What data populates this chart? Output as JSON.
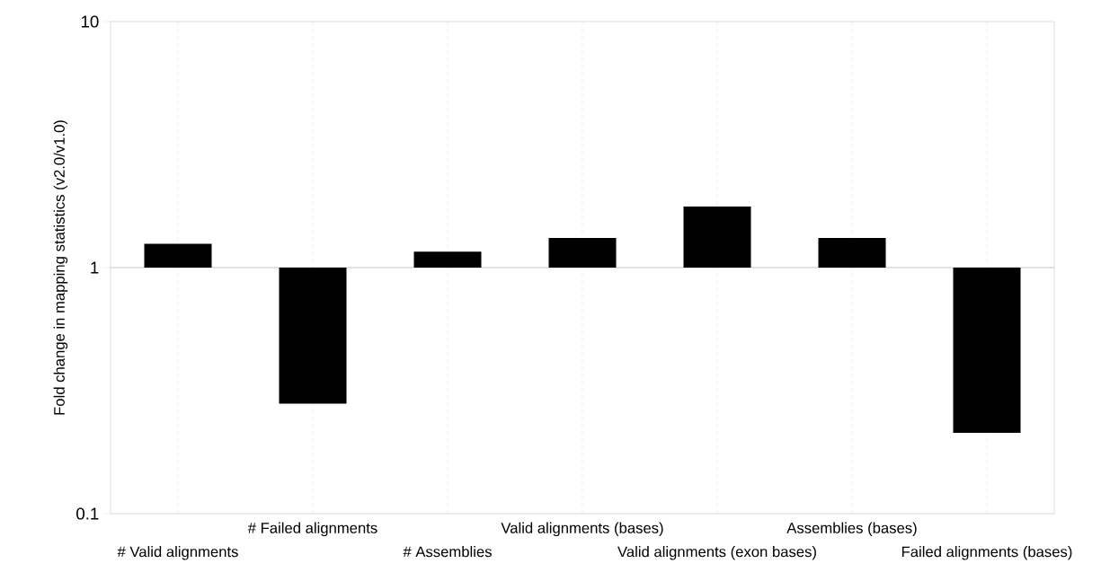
{
  "chart_data": {
    "type": "bar",
    "ylabel": "Fold change in mapping statistics (v2.0/v1.0)",
    "categories": [
      "# Valid alignments",
      "# Failed alignments",
      "# Assemblies",
      "Valid alignments (bases)",
      "Valid alignments (exon bases)",
      "Assemblies (bases)",
      "Failed alignments (bases)"
    ],
    "base": [
      1,
      1,
      1,
      1,
      1,
      1,
      1
    ],
    "values": [
      0.25,
      -0.72,
      0.16,
      0.32,
      0.77,
      0.32,
      -0.787
    ],
    "color": "#000000",
    "ylim": [
      0.1,
      10
    ],
    "yticks": [
      0.1,
      1,
      10
    ],
    "log": true,
    "grid": true,
    "ref_lines": [
      {
        "axis": "y",
        "value": 1,
        "color": "#c6c6c6"
      }
    ]
  }
}
